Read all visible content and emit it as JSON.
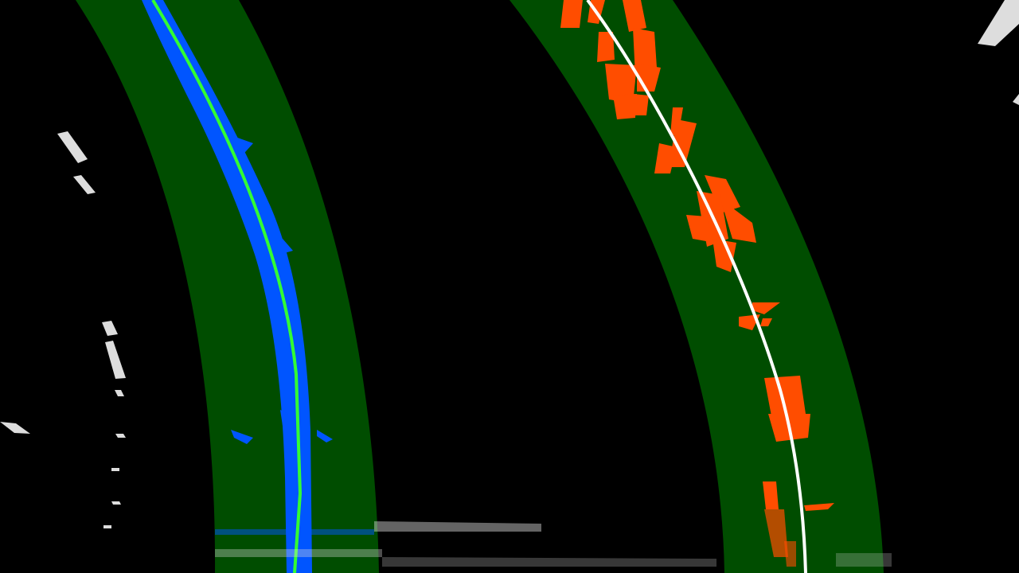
{
  "colors": {
    "background": "#000000",
    "search_window": "#004d00",
    "left_lane_pixels": "#0055ff",
    "right_lane_pixels": "#ff4d00",
    "left_fit_line": "#33ff33",
    "right_fit_line": "#ffffff",
    "noise": "#dddddd"
  },
  "left_lane": {
    "label": "left-lane"
  },
  "right_lane": {
    "label": "right-lane"
  }
}
